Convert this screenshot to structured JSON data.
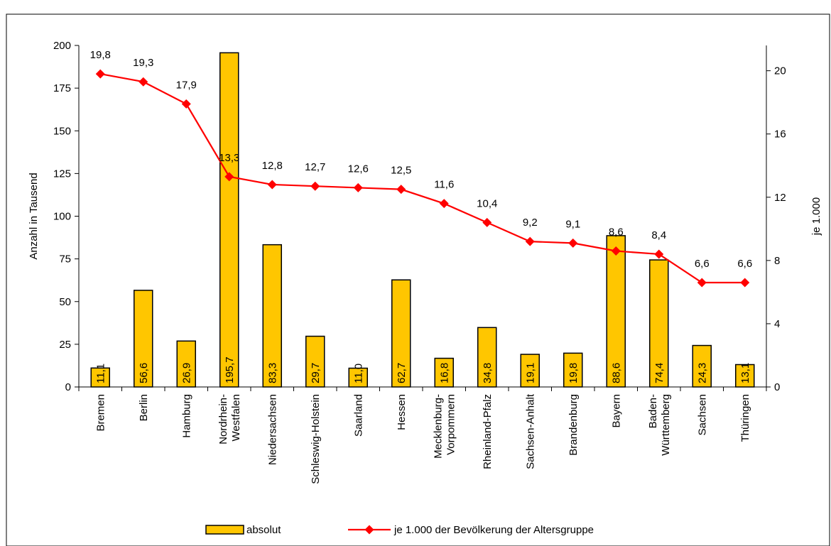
{
  "chart_data": {
    "type": "bar",
    "title": "",
    "categories": [
      [
        "Bremen"
      ],
      [
        "Berlin"
      ],
      [
        "Hamburg"
      ],
      [
        "Nordrhein-",
        "Westfalen"
      ],
      [
        "Niedersachsen"
      ],
      [
        "Schleswig-Holstein"
      ],
      [
        "Saarland"
      ],
      [
        "Hessen"
      ],
      [
        "Mecklenburg-",
        "Vorpommern"
      ],
      [
        "Rheinland-Pfalz"
      ],
      [
        "Sachsen-Anhalt"
      ],
      [
        "Brandenburg"
      ],
      [
        "Bayern"
      ],
      [
        "Baden-",
        "Württemberg"
      ],
      [
        "Sachsen"
      ],
      [
        "Thüringen"
      ]
    ],
    "series": [
      {
        "name": "absolut",
        "kind": "bar",
        "axis": "left",
        "color": "#FFC600",
        "values": [
          11.1,
          56.6,
          26.9,
          195.7,
          83.3,
          29.7,
          11.0,
          62.7,
          16.8,
          34.8,
          19.1,
          19.8,
          88.6,
          74.4,
          24.3,
          13.1
        ],
        "labels": [
          "11,1",
          "56,6",
          "26,9",
          "195,7",
          "83,3",
          "29,7",
          "11,0",
          "62,7",
          "16,8",
          "34,8",
          "19,1",
          "19,8",
          "88,6",
          "74,4",
          "24,3",
          "13,1"
        ]
      },
      {
        "name": "je 1.000 der Bevölkerung der Altersgruppe",
        "kind": "line",
        "axis": "right",
        "color": "#FF0000",
        "values": [
          19.8,
          19.3,
          17.9,
          13.3,
          12.8,
          12.7,
          12.6,
          12.5,
          11.6,
          10.4,
          9.2,
          9.1,
          8.6,
          8.4,
          6.6,
          6.6
        ],
        "labels": [
          "19,8",
          "19,3",
          "17,9",
          "13,3",
          "12,8",
          "12,7",
          "12,6",
          "12,5",
          "11,6",
          "10,4",
          "9,2",
          "9,1",
          "8,6",
          "8,4",
          "6,6",
          "6,6"
        ]
      }
    ],
    "y_left": {
      "label": "Anzahl in Tausend",
      "ylim": [
        0,
        200
      ],
      "ticks": [
        "0",
        "25",
        "50",
        "75",
        "100",
        "125",
        "150",
        "175",
        "200"
      ]
    },
    "y_right": {
      "label": "je 1.000",
      "ylim": [
        0,
        21.6
      ],
      "ticks": [
        "0",
        "4",
        "8",
        "12",
        "16",
        "20"
      ]
    },
    "grid": false,
    "legend": "bottom"
  }
}
